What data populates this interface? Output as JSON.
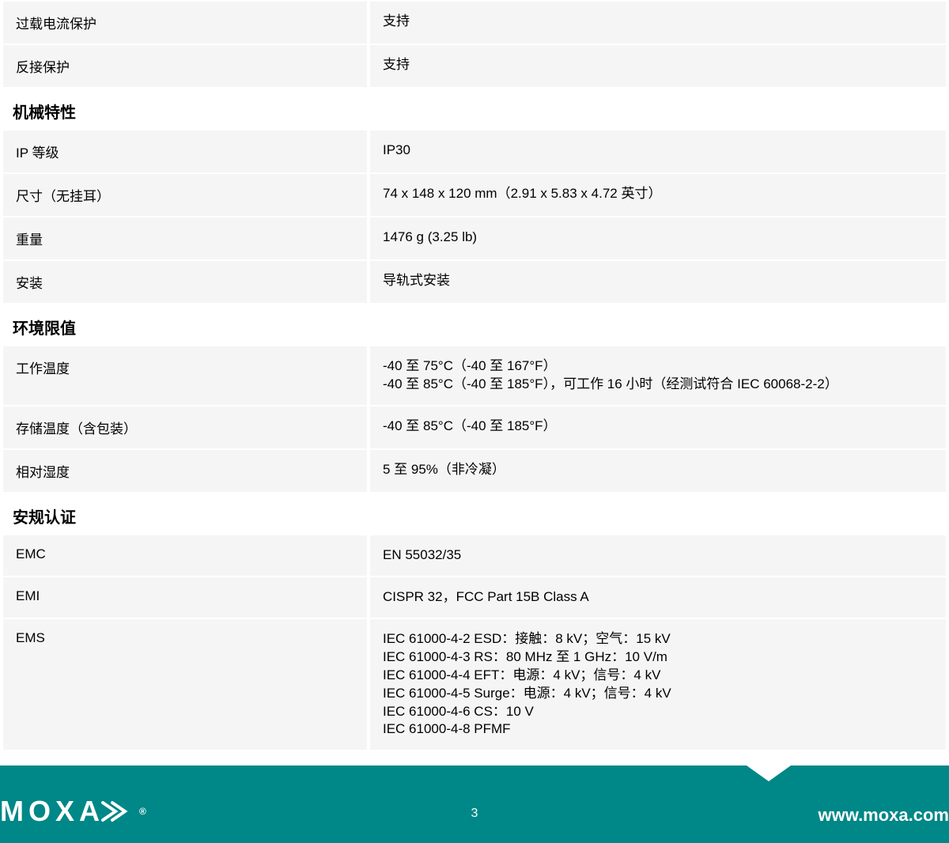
{
  "sections": [
    {
      "rows": [
        {
          "label": "过载电流保护",
          "value": "支持"
        },
        {
          "label": "反接保护",
          "value": "支持"
        }
      ]
    },
    {
      "title": "机械特性",
      "rows": [
        {
          "label": "IP 等级",
          "value": "IP30"
        },
        {
          "label": "尺寸（无挂耳）",
          "value": "74 x 148 x 120 mm（2.91 x 5.83 x 4.72 英寸）"
        },
        {
          "label": "重量",
          "value": "1476 g (3.25 lb)"
        },
        {
          "label": "安装",
          "value": "导轨式安装"
        }
      ]
    },
    {
      "title": "环境限值",
      "rows": [
        {
          "label": "工作温度",
          "value": "-40 至 75°C（-40 至 167°F）\n-40 至 85°C（-40 至 185°F），可工作 16 小时（经测试符合 IEC 60068-2-2）"
        },
        {
          "label": "存储温度（含包装）",
          "value": "-40 至 85°C（-40 至 185°F）"
        },
        {
          "label": "相对湿度",
          "value": "5 至 95%（非冷凝）"
        }
      ]
    },
    {
      "title": "安规认证",
      "rows": [
        {
          "label": "EMC",
          "value": "EN 55032/35"
        },
        {
          "label": "EMI",
          "value": "CISPR 32，FCC Part 15B Class A"
        },
        {
          "label": "EMS",
          "value": "IEC 61000-4-2 ESD：接触：8 kV；空气：15 kV\nIEC 61000-4-3 RS：80 MHz 至 1 GHz：10 V/m\nIEC 61000-4-4 EFT：电源：4 kV；信号：4 kV\nIEC 61000-4-5 Surge：电源：4 kV；信号：4 kV\nIEC 61000-4-6 CS：10 V\nIEC 61000-4-8 PFMF"
        }
      ]
    }
  ],
  "footer": {
    "logo": "MOXA",
    "page": "3",
    "url": "www.moxa.com"
  },
  "colors": {
    "row_bg": "#f5f5f5",
    "footer_bg": "#008787",
    "text": "#000000",
    "footer_text": "#ffffff"
  }
}
